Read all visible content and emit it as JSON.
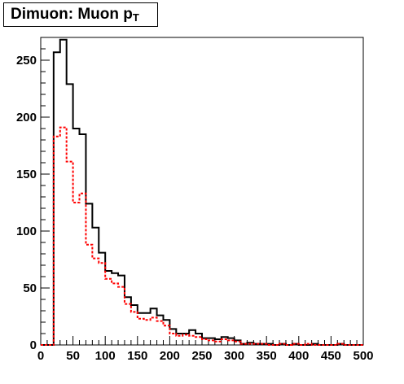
{
  "title": {
    "main": "Dimuon: Muon p",
    "subscript": "T"
  },
  "chart_data": {
    "type": "histogram",
    "bin_edges_start": 0,
    "bin_width": 10,
    "xlim": [
      0,
      500
    ],
    "ylim": [
      0,
      270
    ],
    "xticks": [
      "0",
      "50",
      "100",
      "150",
      "200",
      "250",
      "300",
      "350",
      "400",
      "450",
      "500"
    ],
    "yticks": [
      "0",
      "50",
      "100",
      "150",
      "200",
      "250"
    ],
    "grid": false,
    "series": [
      {
        "style": "solid",
        "color": "#000000",
        "values": [
          0,
          0,
          257,
          268,
          229,
          190,
          185,
          124,
          103,
          81,
          65,
          63,
          61,
          42,
          35,
          28,
          28,
          32,
          26,
          22,
          14,
          10,
          10,
          13,
          10,
          6,
          6,
          5,
          7,
          6,
          4,
          1,
          2,
          1,
          1,
          1,
          0,
          1,
          0,
          1,
          0,
          0,
          1,
          0,
          0,
          0,
          1,
          0,
          0,
          0
        ]
      },
      {
        "style": "dashed",
        "color": "#ff0000",
        "values": [
          0,
          0,
          183,
          191,
          161,
          125,
          133,
          88,
          76,
          72,
          58,
          54,
          51,
          36,
          29,
          23,
          22,
          24,
          21,
          17,
          10,
          8,
          9,
          8,
          7,
          5,
          4,
          3,
          5,
          4,
          3,
          1,
          1,
          1,
          1,
          0,
          0,
          1,
          0,
          1,
          0,
          1,
          0,
          0,
          0,
          0,
          1,
          0,
          0,
          0
        ]
      }
    ]
  }
}
